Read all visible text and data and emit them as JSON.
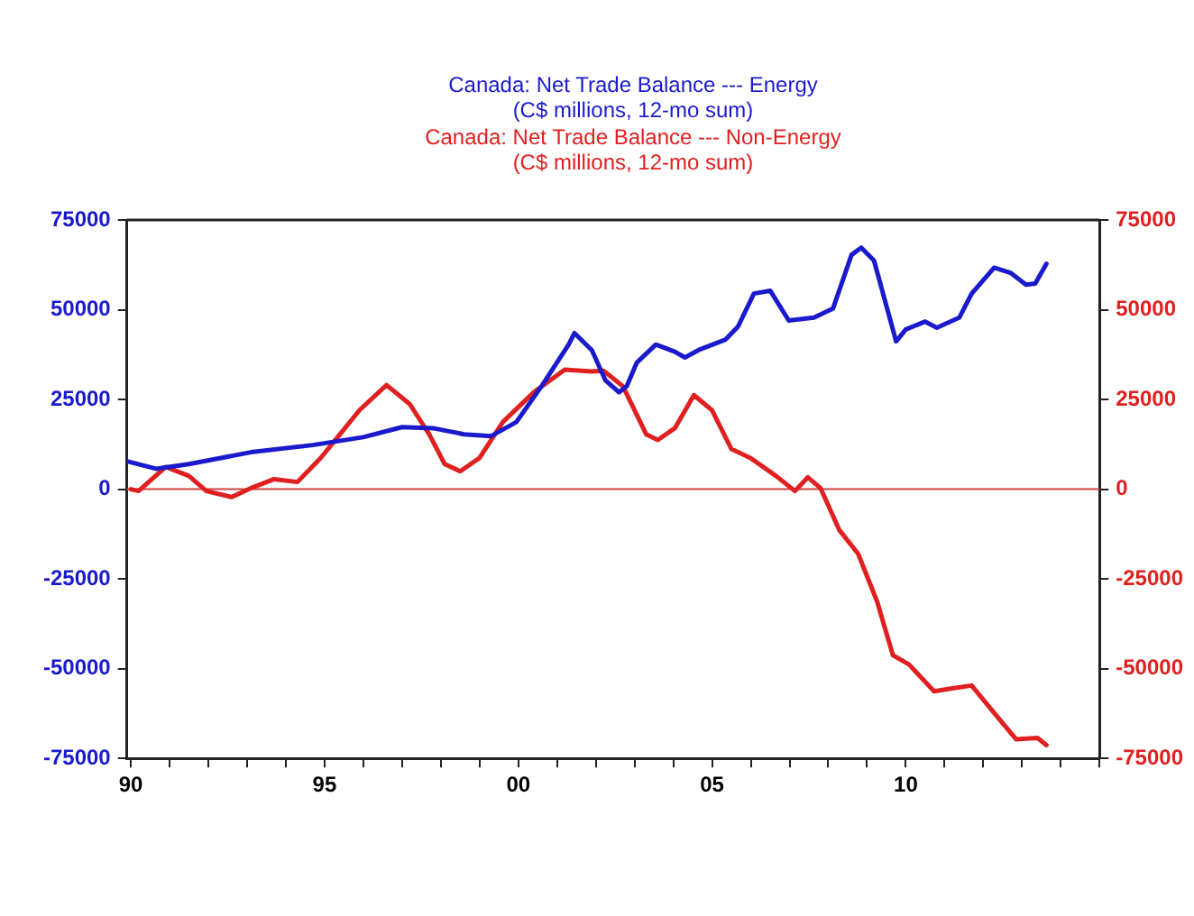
{
  "chart_data": {
    "type": "line",
    "xlim": [
      1989.9,
      2015
    ],
    "xticks": [
      {
        "value": 1990,
        "label": "90"
      },
      {
        "value": 1991,
        "label": null
      },
      {
        "value": 1992,
        "label": null
      },
      {
        "value": 1993,
        "label": null
      },
      {
        "value": 1994,
        "label": null
      },
      {
        "value": 1995,
        "label": "95"
      },
      {
        "value": 1996,
        "label": null
      },
      {
        "value": 1997,
        "label": null
      },
      {
        "value": 1998,
        "label": null
      },
      {
        "value": 1999,
        "label": null
      },
      {
        "value": 2000,
        "label": "00"
      },
      {
        "value": 2001,
        "label": null
      },
      {
        "value": 2002,
        "label": null
      },
      {
        "value": 2003,
        "label": null
      },
      {
        "value": 2004,
        "label": null
      },
      {
        "value": 2005,
        "label": "05"
      },
      {
        "value": 2006,
        "label": null
      },
      {
        "value": 2007,
        "label": null
      },
      {
        "value": 2008,
        "label": null
      },
      {
        "value": 2009,
        "label": null
      },
      {
        "value": 2010,
        "label": "10"
      },
      {
        "value": 2011,
        "label": null
      },
      {
        "value": 2012,
        "label": null
      },
      {
        "value": 2013,
        "label": null
      },
      {
        "value": 2014,
        "label": null
      },
      {
        "value": 2015,
        "label": null
      }
    ],
    "ylim": [
      -75000,
      75000
    ],
    "yticks": [
      -75000,
      -50000,
      -25000,
      0,
      25000,
      50000,
      75000
    ],
    "y2lim": [
      -75000,
      75000
    ],
    "y2ticks": [
      -75000,
      -50000,
      -25000,
      0,
      25000,
      50000,
      75000
    ],
    "grid": false,
    "legend": "top",
    "marker": "none",
    "line_style": "solid",
    "ref_lines": [
      {
        "axis": "y",
        "value": 0,
        "color": "#d04040"
      }
    ],
    "series": [
      {
        "name": "Canada: Net Trade Balance --- Energy\n(C$ millions, 12-mo sum)",
        "color": "#1a1acc",
        "axis": "y",
        "x": [
          1989.9,
          1990.65,
          1991.5,
          1993.1,
          1994.7,
          1996.0,
          1997.0,
          1997.8,
          1998.6,
          1999.3,
          1999.95,
          2000.6,
          2001.3,
          2001.45,
          2001.9,
          2002.25,
          2002.6,
          2002.8,
          2003.06,
          2003.55,
          2004.04,
          2004.3,
          2004.7,
          2005.35,
          2005.67,
          2006.08,
          2006.5,
          2006.98,
          2007.63,
          2008.12,
          2008.6,
          2008.85,
          2009.18,
          2009.75,
          2010.0,
          2010.5,
          2010.8,
          2011.38,
          2011.7,
          2012.28,
          2012.7,
          2013.1,
          2013.34,
          2013.63
        ],
        "values": [
          7800,
          5700,
          7000,
          10300,
          12300,
          14500,
          17300,
          17000,
          15300,
          14800,
          18700,
          28700,
          40300,
          43500,
          38700,
          30300,
          27000,
          28700,
          35300,
          40300,
          38300,
          36700,
          39000,
          41700,
          45300,
          54500,
          55300,
          47000,
          47800,
          50300,
          65300,
          67300,
          63700,
          41200,
          44500,
          46700,
          45000,
          47800,
          54500,
          61700,
          60300,
          57000,
          57300,
          62800
        ]
      },
      {
        "name": "Canada: Net Trade Balance --- Non-Energy\n(C$ millions, 12-mo sum)",
        "color": "#e02020",
        "axis": "y2",
        "x": [
          1990.0,
          1990.2,
          1990.9,
          1991.5,
          1991.95,
          1992.6,
          1993.1,
          1993.7,
          1994.3,
          1994.9,
          1995.4,
          1995.9,
          1996.6,
          1997.2,
          1997.7,
          1998.1,
          1998.5,
          1999.0,
          1999.6,
          2000.4,
          2001.2,
          2001.9,
          2002.2,
          2002.7,
          2003.3,
          2003.6,
          2004.04,
          2004.53,
          2005.0,
          2005.5,
          2005.99,
          2006.65,
          2007.14,
          2007.47,
          2007.8,
          2008.28,
          2008.77,
          2009.26,
          2009.67,
          2010.08,
          2010.73,
          2011.2,
          2011.7,
          2012.2,
          2012.85,
          2013.4,
          2013.63
        ],
        "values": [
          0,
          -500,
          6200,
          3700,
          -500,
          -2200,
          300,
          2800,
          2000,
          8700,
          15300,
          22000,
          29000,
          23700,
          15300,
          7000,
          5000,
          8700,
          18700,
          27000,
          33300,
          32800,
          33000,
          28700,
          15300,
          13700,
          17000,
          26200,
          22000,
          11200,
          8700,
          3700,
          -500,
          3300,
          300,
          -11300,
          -18000,
          -31300,
          -46300,
          -48800,
          -56300,
          -55500,
          -54700,
          -61300,
          -69700,
          -69300,
          -71300
        ]
      }
    ]
  }
}
